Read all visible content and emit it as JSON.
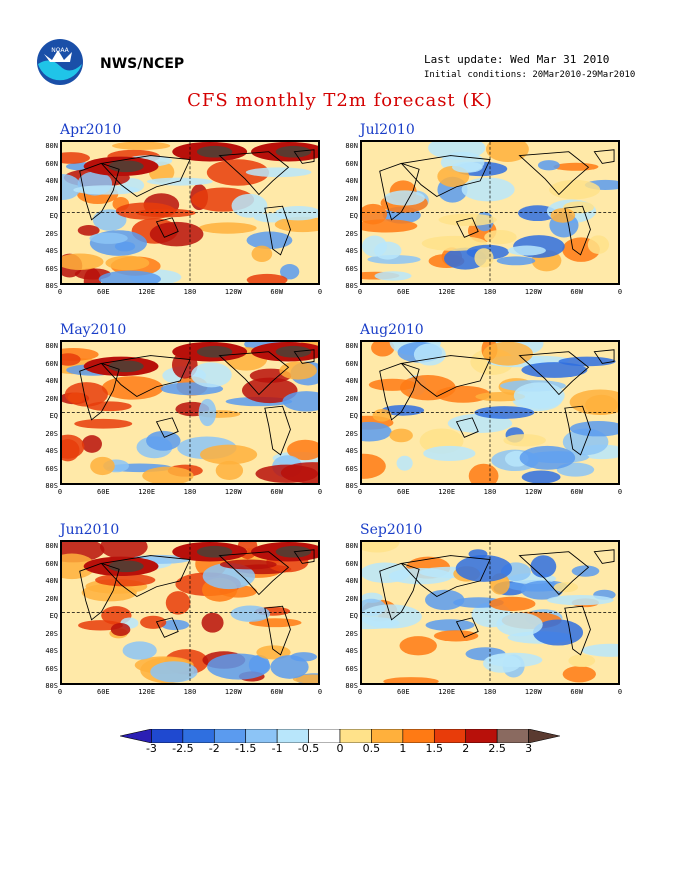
{
  "header": {
    "agency": "NWS/NCEP",
    "last_update": "Last update: Wed Mar 31 2010",
    "initial_conditions": "Initial conditions: 20Mar2010-29Mar2010",
    "logo_icon": "noaa-logo-icon"
  },
  "title": "CFS monthly T2m forecast (K)",
  "lat_labels": [
    "80N",
    "60N",
    "40N",
    "20N",
    "EQ",
    "20S",
    "40S",
    "60S",
    "80S"
  ],
  "lon_labels": [
    "0",
    "60E",
    "120E",
    "180",
    "120W",
    "60W",
    "0"
  ],
  "panels": [
    {
      "title": "Apr2010",
      "theme": "warm"
    },
    {
      "title": "Jul2010",
      "theme": "mixed"
    },
    {
      "title": "May2010",
      "theme": "warm"
    },
    {
      "title": "Aug2010",
      "theme": "mixed"
    },
    {
      "title": "Jun2010",
      "theme": "warm"
    },
    {
      "title": "Sep2010",
      "theme": "mixed"
    }
  ],
  "colorbar": {
    "labels": [
      "-3",
      "-2.5",
      "-2",
      "-1.5",
      "-1",
      "-0.5",
      "0",
      "0.5",
      "1",
      "1.5",
      "2",
      "2.5",
      "3"
    ],
    "colors": [
      "#2b1fb4",
      "#1f49d0",
      "#2f6fe0",
      "#5b9bef",
      "#8cc4f6",
      "#b8e6fb",
      "#ffffff",
      "#ffe28a",
      "#ffb03c",
      "#ff7a14",
      "#e83c0a",
      "#b8100a",
      "#8a6a60",
      "#5a3a30"
    ]
  }
}
